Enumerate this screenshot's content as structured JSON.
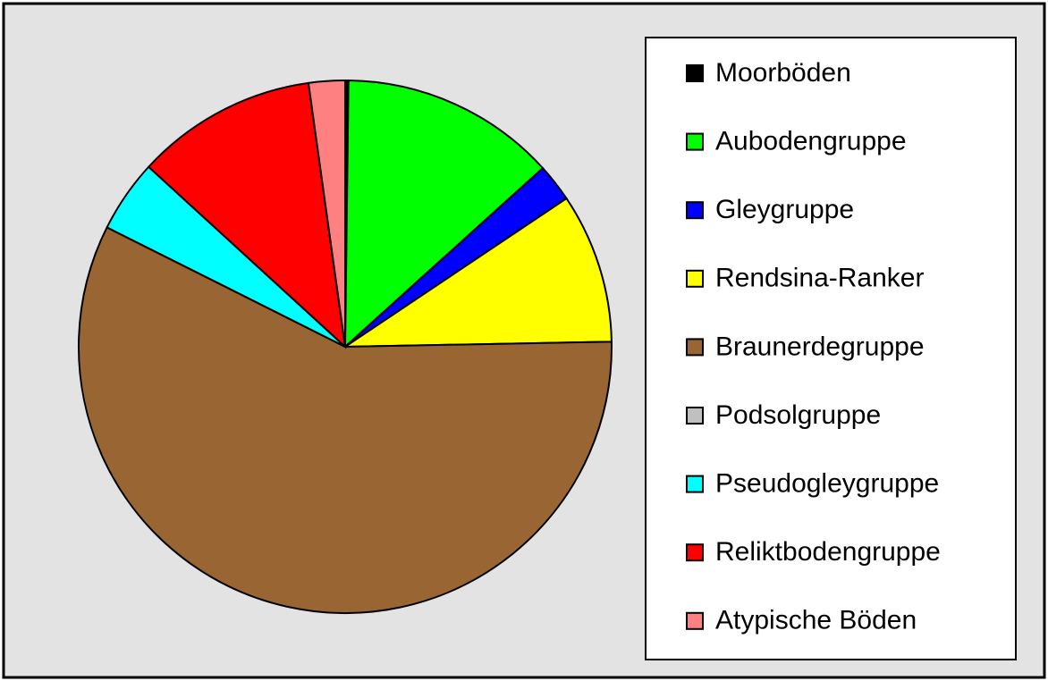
{
  "chart_data": {
    "type": "pie",
    "categories": [
      "Moorböden",
      "Aubodengruppe",
      "Gleygruppe",
      "Rendsina-Ranker",
      "Braunerdegruppe",
      "Podsolgruppe",
      "Pseudogleygruppe",
      "Reliktbodengruppe",
      "Atypische Böden"
    ],
    "values": [
      0.2,
      13.1,
      2.3,
      9.1,
      57.7,
      0,
      4.4,
      11.0,
      2.2
    ],
    "colors": [
      "#000000",
      "#00ff00",
      "#0000ff",
      "#ffff00",
      "#996633",
      "#c0c0c0",
      "#00ffff",
      "#ff0000",
      "#ff8080"
    ],
    "legend": "right"
  }
}
